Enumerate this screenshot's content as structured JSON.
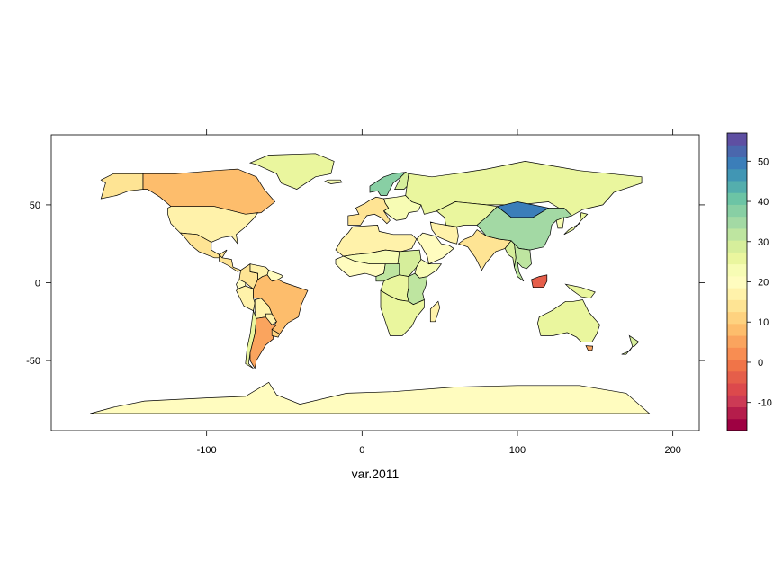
{
  "chart_data": {
    "type": "choropleth-map",
    "xlabel": "var.2011",
    "xlim": [
      -200,
      217
    ],
    "ylim": [
      -95,
      95
    ],
    "x_ticks": [
      -100,
      0,
      100,
      200
    ],
    "y_ticks": [
      -50,
      0,
      50
    ],
    "x_tick_labels": [
      "-100",
      "0",
      "100",
      "200"
    ],
    "y_tick_labels": [
      "-50",
      "0",
      "50"
    ],
    "colorbar": {
      "range": [
        -17,
        57
      ],
      "ticks": [
        -10,
        0,
        10,
        20,
        30,
        40,
        50
      ],
      "tick_labels": [
        "-10",
        "0",
        "10",
        "20",
        "30",
        "40",
        "50"
      ],
      "palette": "Spectral",
      "colors": [
        "#9e0142",
        "#b51d4b",
        "#cc3a55",
        "#dc494c",
        "#e55e4a",
        "#f07448",
        "#f88d52",
        "#faa45e",
        "#fdbd6c",
        "#fed27f",
        "#fee494",
        "#fff2aa",
        "#fffcbf",
        "#f7fcb4",
        "#eaf69e",
        "#d6ee9b",
        "#bee5a0",
        "#a3d9a4",
        "#88cfa4",
        "#6cc4a5",
        "#54aead",
        "#4196b4",
        "#3b7eb9",
        "#4a67ad",
        "#5e4fa2"
      ]
    },
    "regions": [
      {
        "name": "Canada",
        "value": 8
      },
      {
        "name": "Alaska",
        "value": 14
      },
      {
        "name": "United States",
        "value": 16
      },
      {
        "name": "Mexico",
        "value": 14
      },
      {
        "name": "Central America",
        "value": 13
      },
      {
        "name": "Greenland",
        "value": 27
      },
      {
        "name": "Iceland",
        "value": 24
      },
      {
        "name": "Colombia",
        "value": 15
      },
      {
        "name": "Venezuela",
        "value": 17
      },
      {
        "name": "Guianas",
        "value": 19
      },
      {
        "name": "Ecuador",
        "value": 20
      },
      {
        "name": "Peru",
        "value": 18
      },
      {
        "name": "Brazil",
        "value": 8
      },
      {
        "name": "Bolivia",
        "value": 16
      },
      {
        "name": "Paraguay",
        "value": 17
      },
      {
        "name": "Chile",
        "value": 27
      },
      {
        "name": "Argentina",
        "value": 6
      },
      {
        "name": "Uruguay",
        "value": 11
      },
      {
        "name": "Scandinavia",
        "value": 37
      },
      {
        "name": "Finland",
        "value": 28
      },
      {
        "name": "Western Europe",
        "value": 15
      },
      {
        "name": "Eastern Europe",
        "value": 22
      },
      {
        "name": "Russia",
        "value": 25
      },
      {
        "name": "North Africa",
        "value": 17
      },
      {
        "name": "Sahel",
        "value": 23
      },
      {
        "name": "West Africa",
        "value": 21
      },
      {
        "name": "Sudan",
        "value": 30
      },
      {
        "name": "Ethiopia",
        "value": 22
      },
      {
        "name": "Central Africa",
        "value": 32
      },
      {
        "name": "DR Congo",
        "value": 26
      },
      {
        "name": "East Africa",
        "value": 31
      },
      {
        "name": "Southern Africa",
        "value": 25
      },
      {
        "name": "Madagascar",
        "value": 17
      },
      {
        "name": "Arabia",
        "value": 19
      },
      {
        "name": "Iran",
        "value": 18
      },
      {
        "name": "Central Asia",
        "value": 25
      },
      {
        "name": "India",
        "value": 13
      },
      {
        "name": "Myanmar",
        "value": 30
      },
      {
        "name": "China",
        "value": 36
      },
      {
        "name": "Mongolia",
        "value": 50
      },
      {
        "name": "Korea",
        "value": 24
      },
      {
        "name": "Japan",
        "value": 26
      },
      {
        "name": "Southeast Asia",
        "value": 31
      },
      {
        "name": "Indonesia",
        "value": -5
      },
      {
        "name": "Papua",
        "value": 26
      },
      {
        "name": "Australia",
        "value": 25
      },
      {
        "name": "New Zealand",
        "value": 28
      },
      {
        "name": "Tasmania",
        "value": 4
      },
      {
        "name": "Antarctica",
        "value": 21
      }
    ]
  }
}
